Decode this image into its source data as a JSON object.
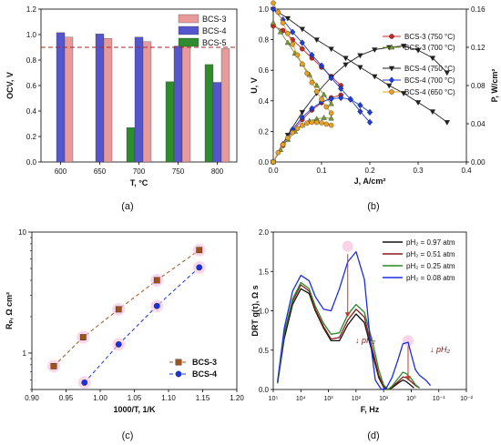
{
  "panel_captions": [
    "(a)",
    "(b)",
    "(c)",
    "(d)"
  ],
  "chart_data": [
    {
      "id": "a",
      "type": "bar",
      "xlabel": "T, °C",
      "ylabel": "OCV, V",
      "categories": [
        "600",
        "650",
        "700",
        "750",
        "800"
      ],
      "ylim": [
        0,
        1.2
      ],
      "yticks": [
        "0.0",
        "0.2",
        "0.4",
        "0.6",
        "0.8",
        "1.0",
        "1.2"
      ],
      "reference_line": 0.9,
      "legend_position": "top-right",
      "series": [
        {
          "name": "BCS-3",
          "color": "#e89a9a",
          "values": [
            0.98,
            0.97,
            0.945,
            0.915,
            0.89
          ]
        },
        {
          "name": "BCS-4",
          "color": "#5555cc",
          "values": [
            1.015,
            1.005,
            0.98,
            0.91,
            0.625
          ]
        },
        {
          "name": "BCS-5",
          "color": "#2e8b2e",
          "values": [
            null,
            null,
            0.27,
            0.63,
            0.765
          ]
        }
      ]
    },
    {
      "id": "b",
      "type": "line",
      "xlabel": "J, A/cm²",
      "ylabel": "U, V",
      "y2label": "P, W/cm²",
      "xlim": [
        0,
        0.4
      ],
      "ylim": [
        0,
        1.0
      ],
      "y2lim": [
        0,
        0.16
      ],
      "xticks": [
        "0.0",
        "0.1",
        "0.2",
        "0.3",
        "0.4"
      ],
      "yticks": [
        "0.0",
        "0.2",
        "0.4",
        "0.6",
        "0.8",
        "1.0"
      ],
      "y2ticks": [
        "0.00",
        "0.04",
        "0.08",
        "0.12",
        "0.16"
      ],
      "legend_position": "right",
      "series": [
        {
          "name": "BCS-3 (750 °C)",
          "color": "#c62828",
          "marker": "circle",
          "x": [
            0.0,
            0.02,
            0.04,
            0.06,
            0.08,
            0.1,
            0.12,
            0.14
          ],
          "y": [
            0.89,
            0.86,
            0.8,
            0.74,
            0.68,
            0.62,
            0.56,
            0.5
          ],
          "p": [
            0.0,
            0.0172,
            0.032,
            0.0444,
            0.0544,
            0.062,
            0.0672,
            0.07
          ]
        },
        {
          "name": "BCS-3 (700 °C)",
          "color": "#7a9a3a",
          "marker": "triangle-up",
          "x": [
            0.0,
            0.015,
            0.03,
            0.045,
            0.06,
            0.075,
            0.09,
            0.105,
            0.12
          ],
          "y": [
            0.91,
            0.85,
            0.78,
            0.71,
            0.64,
            0.57,
            0.5,
            0.44,
            0.38
          ],
          "p": [
            0.0,
            0.0128,
            0.0234,
            0.032,
            0.0384,
            0.0428,
            0.045,
            0.0462,
            0.0456
          ]
        },
        {
          "name": "BCS-4 (750 °C)",
          "color": "#222222",
          "marker": "triangle-down",
          "x": [
            0.0,
            0.03,
            0.06,
            0.09,
            0.12,
            0.15,
            0.18,
            0.21,
            0.24,
            0.27,
            0.3,
            0.33,
            0.36
          ],
          "y": [
            1.0,
            0.94,
            0.87,
            0.8,
            0.74,
            0.68,
            0.62,
            0.56,
            0.5,
            0.45,
            0.39,
            0.33,
            0.26
          ],
          "p": [
            0.0,
            0.0282,
            0.0522,
            0.072,
            0.0888,
            0.102,
            0.1116,
            0.1176,
            0.12,
            0.1215,
            0.117,
            0.1089,
            0.0936
          ]
        },
        {
          "name": "BCS-4 (700 °C)",
          "color": "#1e3ed8",
          "marker": "diamond",
          "x": [
            0.0,
            0.02,
            0.04,
            0.06,
            0.08,
            0.1,
            0.12,
            0.14,
            0.16,
            0.18,
            0.2
          ],
          "y": [
            1.0,
            0.93,
            0.85,
            0.78,
            0.7,
            0.63,
            0.55,
            0.48,
            0.41,
            0.33,
            0.26
          ],
          "p": [
            0.0,
            0.0186,
            0.034,
            0.0468,
            0.056,
            0.063,
            0.066,
            0.0672,
            0.0656,
            0.0594,
            0.052
          ]
        },
        {
          "name": "BCS-4 (650 °C)",
          "color": "#e8a020",
          "marker": "circle",
          "x": [
            0.0,
            0.01,
            0.02,
            0.03,
            0.04,
            0.05,
            0.06,
            0.07,
            0.08,
            0.09,
            0.1,
            0.11,
            0.12
          ],
          "y": [
            1.04,
            0.98,
            0.91,
            0.84,
            0.77,
            0.7,
            0.64,
            0.58,
            0.52,
            0.46,
            0.41,
            0.36,
            0.32
          ],
          "p": [
            0.0,
            0.0098,
            0.0182,
            0.0252,
            0.0308,
            0.035,
            0.0384,
            0.0406,
            0.0416,
            0.0414,
            0.041,
            0.0396,
            0.0384
          ]
        }
      ]
    },
    {
      "id": "c",
      "type": "scatter",
      "xlabel": "1000/T, 1/K",
      "ylabel": "Rₚ, Ω cm²",
      "xlim": [
        0.9,
        1.2
      ],
      "ylim_log": [
        0.5,
        10
      ],
      "xticks": [
        "0.90",
        "0.95",
        "1.00",
        "1.05",
        "1.10",
        "1.15",
        "1.20"
      ],
      "yticks": [
        "1",
        "10"
      ],
      "log_y": true,
      "legend_position": "bottom-right",
      "series": [
        {
          "name": "BCS-3",
          "color": "#a0521c",
          "marker": "square",
          "x": [
            0.932,
            0.975,
            1.027,
            1.083,
            1.145
          ],
          "y": [
            0.78,
            1.35,
            2.3,
            4.0,
            7.1
          ]
        },
        {
          "name": "BCS-4",
          "color": "#1a33d8",
          "marker": "circle",
          "x": [
            0.977,
            1.027,
            1.083,
            1.145
          ],
          "y": [
            0.57,
            1.18,
            2.45,
            5.1
          ]
        }
      ]
    },
    {
      "id": "d",
      "type": "line",
      "xlabel": "F, Hz",
      "ylabel": "DRT g(τ), Ω s",
      "xlim_log": [
        100000,
        0.01
      ],
      "ylim": [
        0,
        2.0
      ],
      "xticks": [
        "10⁵",
        "10⁴",
        "10³",
        "10²",
        "10¹",
        "10⁰",
        "10⁻¹",
        "10⁻²"
      ],
      "yticks": [
        "0.0",
        "0.5",
        "1.0",
        "1.5",
        "2.0"
      ],
      "legend_position": "top-right",
      "annotations": [
        "↓ pH₂",
        "↓ pH₂"
      ],
      "series": [
        {
          "name": "pH₂ = 0.97 atm",
          "color": "#111111",
          "x": [
            70000,
            40000,
            20000,
            10000,
            5000,
            3000,
            1500,
            800,
            400,
            200,
            100,
            50,
            25,
            15,
            10,
            7,
            5,
            3,
            2,
            1.5,
            1,
            0.8
          ],
          "y": [
            0.08,
            0.65,
            1.08,
            1.28,
            1.22,
            1.0,
            0.78,
            0.62,
            0.62,
            0.82,
            0.96,
            0.85,
            0.45,
            0.15,
            0.03,
            0.0,
            0.02,
            0.08,
            0.12,
            0.1,
            0.05,
            0.02
          ]
        },
        {
          "name": "pH₂ = 0.51 atm",
          "color": "#8b1a1a",
          "x": [
            70000,
            40000,
            20000,
            10000,
            5000,
            3000,
            1500,
            800,
            400,
            200,
            100,
            50,
            25,
            15,
            10,
            7,
            5,
            3,
            2,
            1.5,
            1,
            0.7,
            0.5
          ],
          "y": [
            0.08,
            0.7,
            1.12,
            1.33,
            1.25,
            1.02,
            0.8,
            0.64,
            0.66,
            0.88,
            1.02,
            0.92,
            0.5,
            0.18,
            0.04,
            0.0,
            0.03,
            0.1,
            0.16,
            0.15,
            0.1,
            0.05,
            0.02
          ]
        },
        {
          "name": "pH₂ = 0.25 atm",
          "color": "#2a8a2a",
          "x": [
            70000,
            40000,
            20000,
            10000,
            5000,
            3000,
            1500,
            800,
            400,
            200,
            100,
            50,
            25,
            15,
            10,
            7,
            5,
            3,
            2,
            1.5,
            1,
            0.7,
            0.5
          ],
          "y": [
            0.08,
            0.72,
            1.15,
            1.36,
            1.28,
            1.06,
            0.84,
            0.7,
            0.72,
            0.95,
            1.08,
            0.98,
            0.6,
            0.25,
            0.06,
            0.0,
            0.04,
            0.14,
            0.22,
            0.2,
            0.14,
            0.06,
            0.02
          ]
        },
        {
          "name": "pH₂ = 0.08 atm",
          "color": "#1a2ee0",
          "x": [
            70000,
            40000,
            20000,
            10000,
            5000,
            3000,
            1500,
            800,
            400,
            200,
            100,
            50,
            30,
            20,
            12,
            8,
            5,
            3,
            2,
            1.3,
            1,
            0.7,
            0.5,
            0.3,
            0.2
          ],
          "y": [
            0.1,
            0.78,
            1.25,
            1.45,
            1.38,
            1.18,
            1.02,
            1.0,
            1.28,
            1.62,
            1.75,
            1.4,
            0.6,
            0.12,
            0.0,
            0.02,
            0.15,
            0.38,
            0.58,
            0.6,
            0.45,
            0.25,
            0.18,
            0.12,
            0.05
          ]
        }
      ]
    }
  ]
}
